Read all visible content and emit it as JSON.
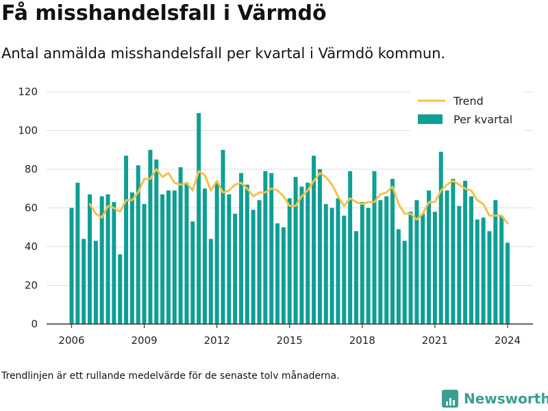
{
  "header": {
    "title": "Få misshandelsfall i Värmdö",
    "subtitle": "Antal anmälda misshandelsfall per kvartal i Värmdö kommun."
  },
  "footer": {
    "note": "Trendlinjen är ett rullande medelvärde för de senaste tolv månaderna.",
    "brand": "Newsworthy"
  },
  "colors": {
    "bars": "#0e9f94",
    "trend": "#f5c04a",
    "grid": "#dddddd",
    "brand": "#3a9f8f"
  },
  "chart_data": {
    "type": "bar",
    "title": "",
    "xlabel": "",
    "ylabel": "",
    "ylim": [
      0,
      120
    ],
    "yticks": [
      0,
      20,
      40,
      60,
      80,
      100,
      120
    ],
    "xticks": [
      2006,
      2009,
      2012,
      2015,
      2018,
      2021,
      2024
    ],
    "grid": true,
    "legend_position": "top-right",
    "x": [
      2006.0,
      2006.25,
      2006.5,
      2006.75,
      2007.0,
      2007.25,
      2007.5,
      2007.75,
      2008.0,
      2008.25,
      2008.5,
      2008.75,
      2009.0,
      2009.25,
      2009.5,
      2009.75,
      2010.0,
      2010.25,
      2010.5,
      2010.75,
      2011.0,
      2011.25,
      2011.5,
      2011.75,
      2012.0,
      2012.25,
      2012.5,
      2012.75,
      2013.0,
      2013.25,
      2013.5,
      2013.75,
      2014.0,
      2014.25,
      2014.5,
      2014.75,
      2015.0,
      2015.25,
      2015.5,
      2015.75,
      2016.0,
      2016.25,
      2016.5,
      2016.75,
      2017.0,
      2017.25,
      2017.5,
      2017.75,
      2018.0,
      2018.25,
      2018.5,
      2018.75,
      2019.0,
      2019.25,
      2019.5,
      2019.75,
      2020.0,
      2020.25,
      2020.5,
      2020.75,
      2021.0,
      2021.25,
      2021.5,
      2021.75,
      2022.0,
      2022.25,
      2022.5,
      2022.75,
      2023.0,
      2023.25,
      2023.5,
      2023.75,
      2024.0
    ],
    "series": [
      {
        "name": "Per kvartal",
        "type": "bar",
        "values": [
          60,
          73,
          44,
          67,
          43,
          66,
          67,
          63,
          36,
          87,
          68,
          82,
          62,
          90,
          85,
          67,
          69,
          69,
          81,
          73,
          53,
          109,
          70,
          44,
          73,
          90,
          67,
          57,
          78,
          72,
          59,
          64,
          79,
          78,
          52,
          50,
          65,
          76,
          71,
          73,
          87,
          80,
          62,
          60,
          65,
          56,
          79,
          48,
          63,
          60,
          79,
          64,
          66,
          75,
          49,
          43,
          58,
          64,
          57,
          69,
          58,
          89,
          69,
          75,
          61,
          74,
          66,
          54,
          55,
          48,
          64,
          56,
          42
        ]
      },
      {
        "name": "Trend",
        "type": "line",
        "x": [
          2006.75,
          2007.0,
          2007.25,
          2007.5,
          2007.75,
          2008.0,
          2008.25,
          2008.5,
          2008.75,
          2009.0,
          2009.25,
          2009.5,
          2009.75,
          2010.0,
          2010.25,
          2010.5,
          2010.75,
          2011.0,
          2011.25,
          2011.5,
          2011.75,
          2012.0,
          2012.25,
          2012.5,
          2012.75,
          2013.0,
          2013.25,
          2013.5,
          2013.75,
          2014.0,
          2014.25,
          2014.5,
          2014.75,
          2015.0,
          2015.25,
          2015.5,
          2015.75,
          2016.0,
          2016.25,
          2016.5,
          2016.75,
          2017.0,
          2017.25,
          2017.5,
          2017.75,
          2018.0,
          2018.25,
          2018.5,
          2018.75,
          2019.0,
          2019.25,
          2019.5,
          2019.75,
          2020.0,
          2020.25,
          2020.5,
          2020.75,
          2021.0,
          2021.25,
          2021.5,
          2021.75,
          2022.0,
          2022.25,
          2022.5,
          2022.75,
          2023.0,
          2023.25,
          2023.5,
          2023.75,
          2024.0
        ],
        "values": [
          62,
          57,
          55,
          61,
          60,
          58,
          64,
          64,
          68,
          75,
          75,
          80,
          76,
          78,
          73,
          72,
          73,
          69,
          79,
          77,
          69,
          74,
          68,
          69,
          72,
          73,
          70,
          66,
          68,
          68,
          70,
          69,
          66,
          61,
          61,
          66,
          69,
          74,
          78,
          76,
          72,
          66,
          61,
          65,
          63,
          62,
          63,
          63,
          67,
          68,
          71,
          62,
          57,
          57,
          54,
          57,
          63,
          63,
          69,
          72,
          74,
          72,
          70,
          69,
          64,
          62,
          56,
          56,
          56,
          52
        ]
      }
    ]
  }
}
